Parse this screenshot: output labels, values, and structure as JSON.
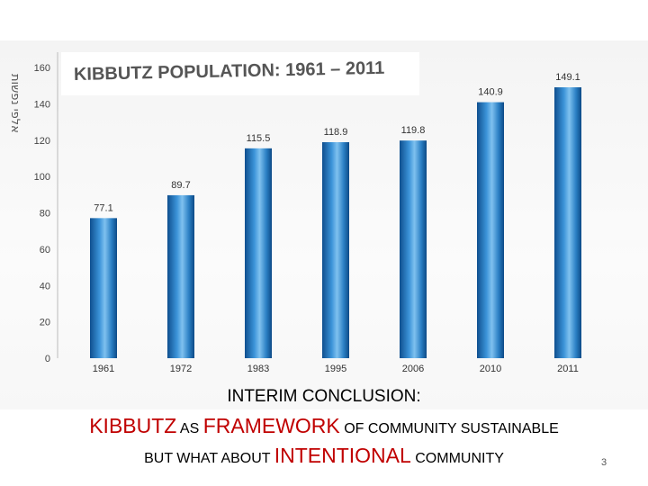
{
  "chart_data": {
    "type": "bar",
    "title": "KIBBUTZ  POPULATION: 1961 – 2011",
    "ylabel": "אלפי נפשות",
    "categories": [
      "1961",
      "1972",
      "1983",
      "1995",
      "2006",
      "2010",
      "2011"
    ],
    "values": [
      77.1,
      89.7,
      115.5,
      118.9,
      119.8,
      140.9,
      149.1
    ],
    "data_labels": [
      "77.1",
      "89.7",
      "115.5",
      "118.9",
      "119.8",
      "140.9",
      "149.1"
    ],
    "ylim": [
      0,
      160
    ],
    "yticks": [
      0,
      20,
      40,
      60,
      80,
      100,
      120,
      140,
      160
    ],
    "grid": false,
    "bar_color": "#1d6fb5"
  },
  "caption": {
    "line1": "INTERIM CONCLUSION:",
    "line2_a": "KIBBUTZ",
    "line2_b": " AS ",
    "line2_c": "FRAMEWORK",
    "line2_d": " OF COMMUNITY SUSTAINABLE",
    "line3_a": "BUT WHAT ABOUT ",
    "line3_b": "INTENTIONAL",
    "line3_c": " COMMUNITY"
  },
  "page_number": "3"
}
